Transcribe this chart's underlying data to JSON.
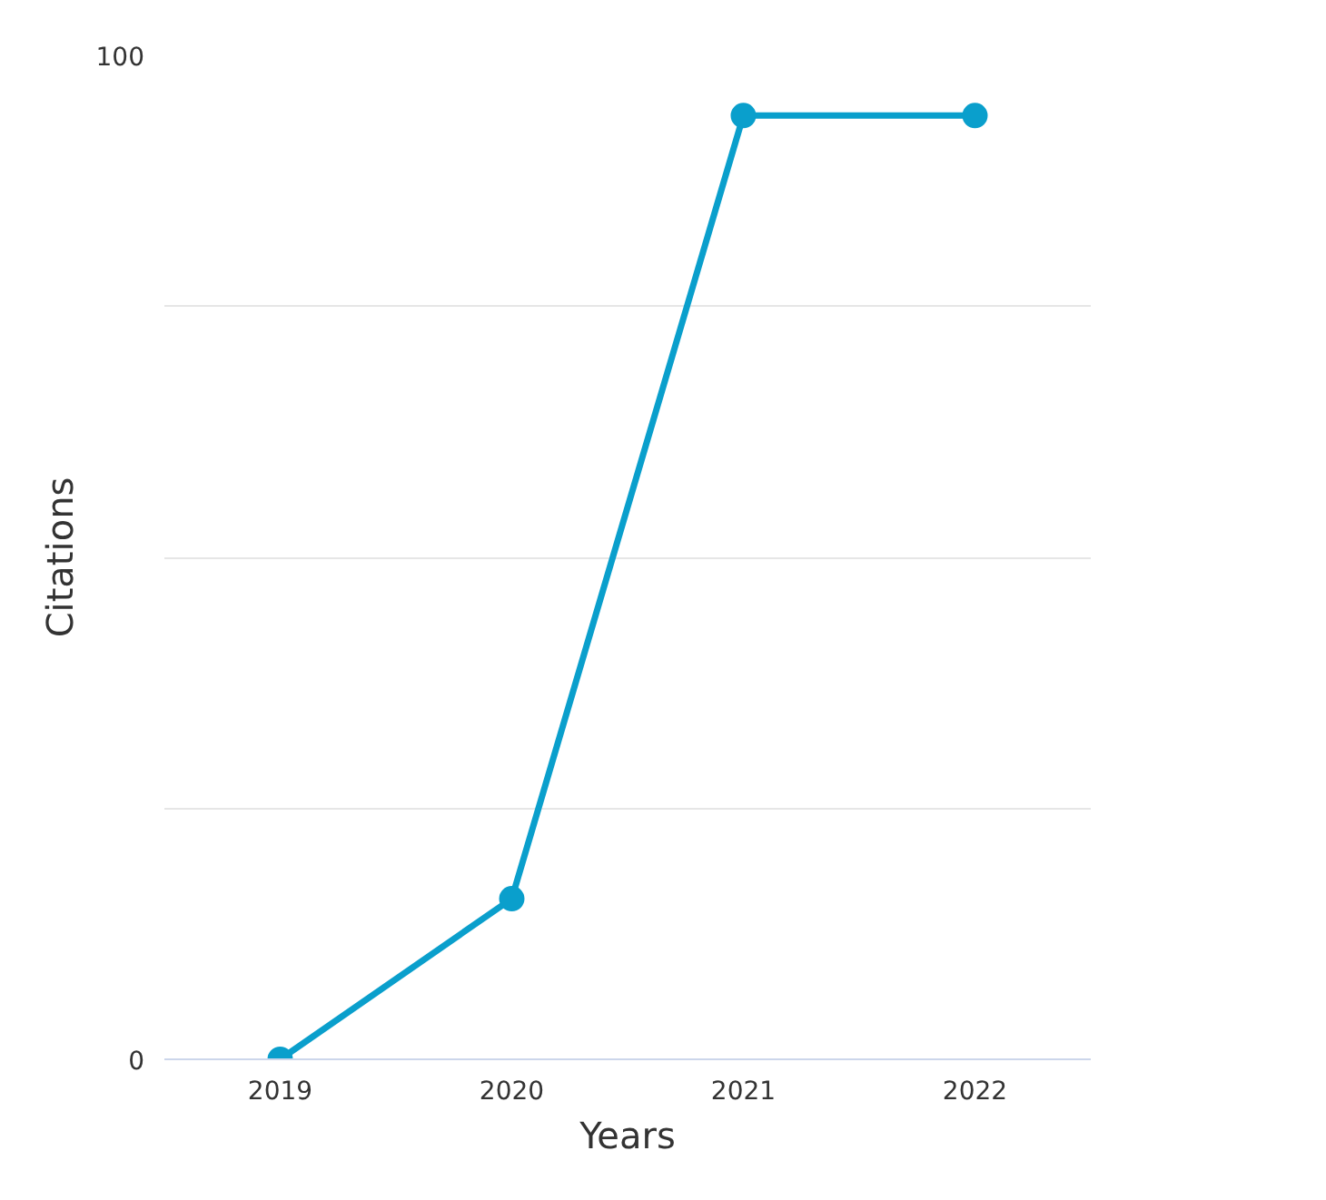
{
  "chart_data": {
    "type": "line",
    "xlabel": "Years",
    "ylabel": "Citations",
    "categories": [
      "2019",
      "2020",
      "2021",
      "2022"
    ],
    "series": [
      {
        "color": "#0a9fcc",
        "values": [
          0,
          16,
          94,
          94
        ]
      }
    ],
    "ylim": [
      0,
      100
    ],
    "yticks": [
      0,
      {
        "value": 25,
        "label": null
      },
      {
        "value": 50,
        "label": null
      },
      {
        "value": 75,
        "label": null
      },
      100
    ],
    "grid": "y",
    "marker": "circle",
    "line_style": "solid"
  }
}
